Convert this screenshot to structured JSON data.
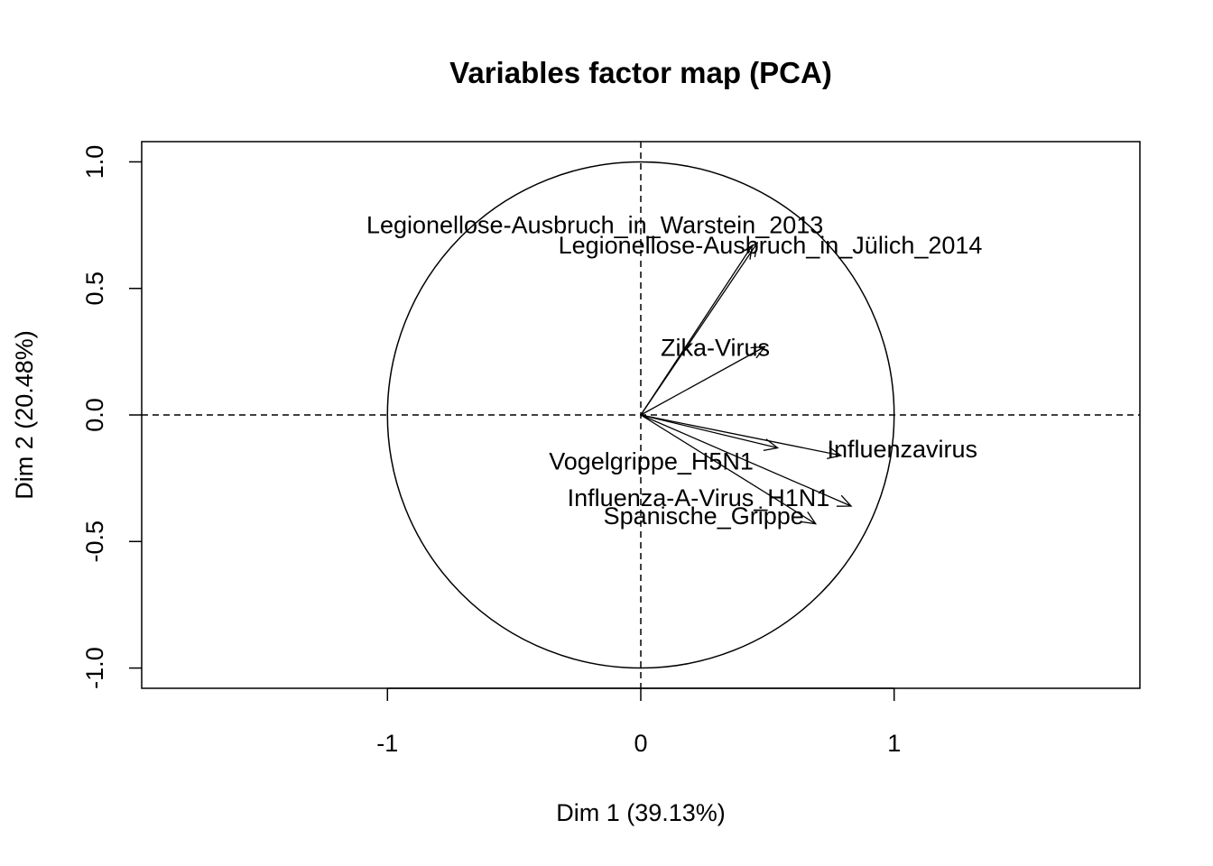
{
  "chart_data": {
    "type": "scatter",
    "subtype": "pca-variables-correlation-circle",
    "title": "Variables factor map (PCA)",
    "xlabel": "Dim 1 (39.13%)",
    "ylabel": "Dim 2 (20.48%)",
    "xlim": [
      -1.97,
      1.97
    ],
    "ylim": [
      -1.08,
      1.08
    ],
    "x_ticks": [
      -1,
      0,
      1
    ],
    "x_tick_labels": [
      "-1",
      "0",
      "1"
    ],
    "y_ticks": [
      -1.0,
      -0.5,
      0.0,
      0.5,
      1.0
    ],
    "y_tick_labels": [
      "-1.0",
      "-0.5",
      "0.0",
      "0.5",
      "1.0"
    ],
    "unit_circle": true,
    "reference_lines": [
      "x=0 dashed",
      "y=0 dashed"
    ],
    "grid": false,
    "variables": [
      {
        "name": "Legionellose-Ausbruch_in_Warstein_2013",
        "x": 0.46,
        "y": 0.68
      },
      {
        "name": "Legionellose-Ausbruch_in_Jülich_2014",
        "x": 0.44,
        "y": 0.67
      },
      {
        "name": "Zika-Virus",
        "x": 0.49,
        "y": 0.27
      },
      {
        "name": "Influenzavirus",
        "x": 0.79,
        "y": -0.16
      },
      {
        "name": "Vogelgrippe_H5N1",
        "x": 0.54,
        "y": -0.13
      },
      {
        "name": "Influenza-A-Virus_H1N1",
        "x": 0.83,
        "y": -0.36
      },
      {
        "name": "Spanische_Grippe",
        "x": 0.69,
        "y": -0.43
      }
    ]
  }
}
